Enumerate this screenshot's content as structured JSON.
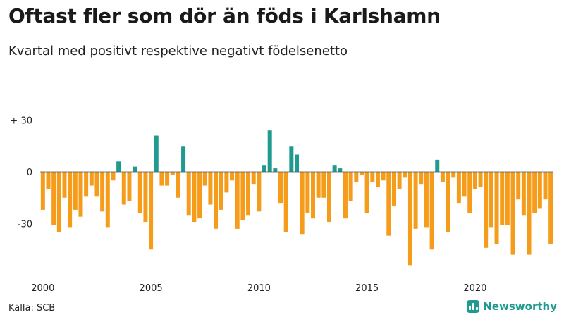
{
  "header": {
    "title": "Oftast fler som dör än föds i Karlshamn",
    "subtitle": "Kvartal med positivt respektive negativt födelsenetto"
  },
  "footer": {
    "source": "Källa: SCB",
    "brand": "Newsworthy"
  },
  "colors": {
    "positive": "#1e9a8f",
    "negative": "#f59c1a",
    "brand": "#1e9a8f"
  },
  "icons": {
    "brand": "bar-chart-icon"
  },
  "chart_data": {
    "type": "bar",
    "title": "Oftast fler som dör än föds i Karlshamn",
    "subtitle": "Kvartal med positivt respektive negativt födelsenetto",
    "xlabel": "",
    "ylabel": "",
    "ylim": [
      -55,
      32
    ],
    "yticks": [
      30,
      0,
      -30
    ],
    "ytick_labels": [
      "+ 30",
      "0",
      "-30"
    ],
    "xticks": [
      2000,
      2005,
      2010,
      2015,
      2020
    ],
    "xtick_labels": [
      "2000",
      "2005",
      "2010",
      "2015",
      "2020"
    ],
    "grid": false,
    "start_year": 2000,
    "start_quarter": 1,
    "values": [
      -22,
      -10,
      -31,
      -35,
      -15,
      -32,
      -22,
      -26,
      -14,
      -8,
      -14,
      -23,
      -32,
      -5,
      6,
      -19,
      -17,
      3,
      -24,
      -29,
      -45,
      21,
      -8,
      -8,
      -2,
      -15,
      15,
      -25,
      -29,
      -27,
      -8,
      -19,
      -33,
      -22,
      -12,
      -5,
      -33,
      -28,
      -25,
      -7,
      -23,
      4,
      24,
      2,
      -18,
      -35,
      15,
      10,
      -36,
      -24,
      -27,
      -15,
      -15,
      -29,
      4,
      2,
      -27,
      -17,
      -6,
      -2,
      -24,
      -6,
      -9,
      -5,
      -37,
      -20,
      -10,
      -3,
      -54,
      -33,
      -7,
      -32,
      -45,
      7,
      -6,
      -35,
      -3,
      -18,
      -14,
      -24,
      -10,
      -9,
      -44,
      -32,
      -42,
      -31,
      -31,
      -48,
      -16,
      -25,
      -48,
      -24,
      -21,
      -16,
      -42
    ]
  }
}
